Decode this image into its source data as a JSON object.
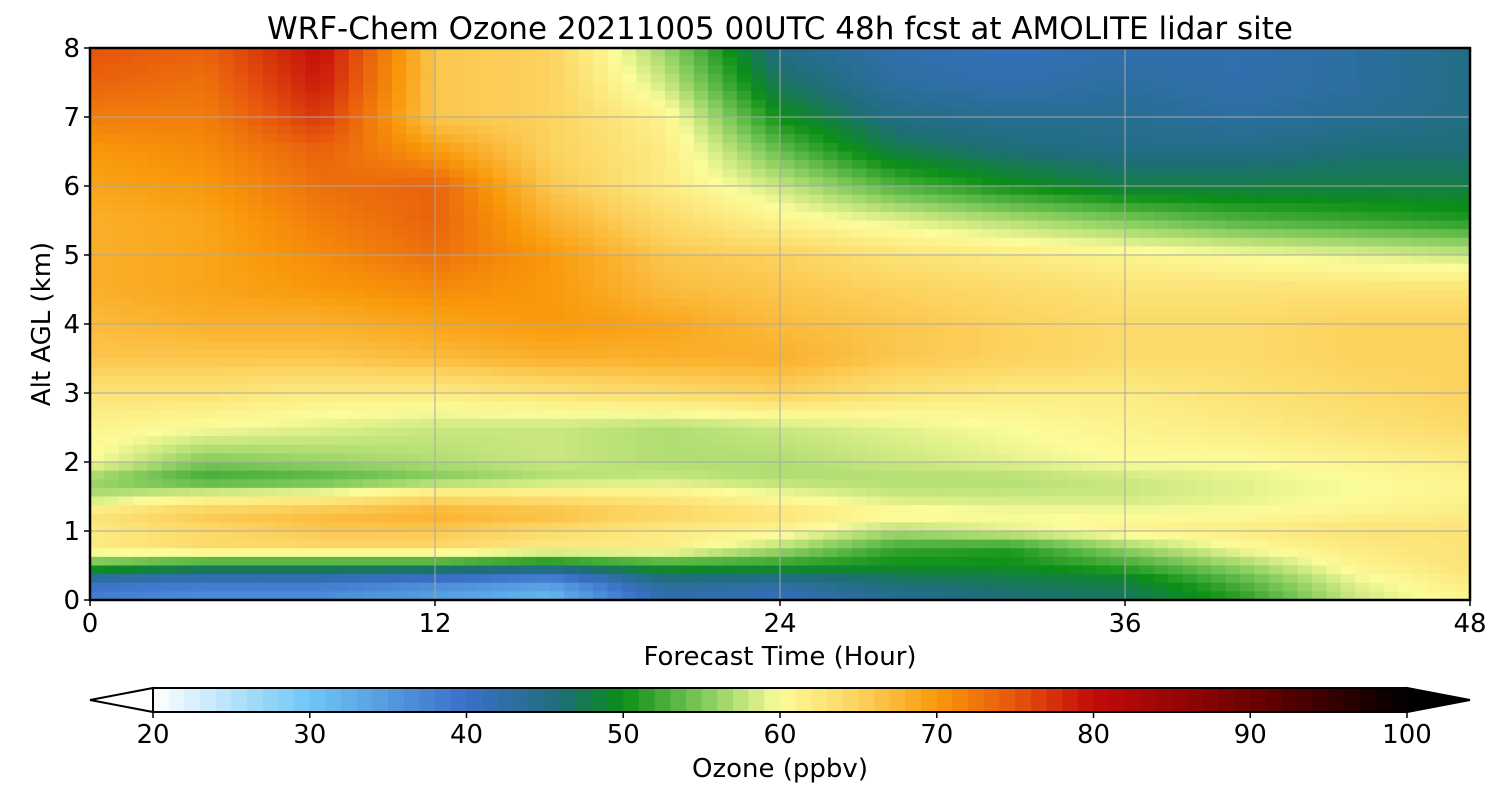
{
  "chart_data": {
    "type": "heatmap",
    "title": "WRF-Chem Ozone  20211005 00UTC 48h fcst at AMOLITE lidar site",
    "xlabel": "Forecast Time (Hour)",
    "ylabel": "Alt AGL (km)",
    "xlim": [
      0,
      48
    ],
    "ylim": [
      0,
      8
    ],
    "xticks": [
      "0",
      "12",
      "24",
      "36",
      "48"
    ],
    "yticks": [
      "0",
      "1",
      "2",
      "3",
      "4",
      "5",
      "6",
      "7",
      "8"
    ],
    "grid": true,
    "colorbar": {
      "label": "Ozone  (ppbv)",
      "range": [
        20,
        100
      ],
      "ticks": [
        "20",
        "30",
        "40",
        "50",
        "60",
        "70",
        "80",
        "90",
        "100"
      ],
      "extend": "both",
      "colors": [
        {
          "value": 20,
          "color": "#ffffff"
        },
        {
          "value": 30,
          "color": "#6ec6f5"
        },
        {
          "value": 40,
          "color": "#3a6fc8"
        },
        {
          "value": 46,
          "color": "#1e6e78"
        },
        {
          "value": 50,
          "color": "#0b8f16"
        },
        {
          "value": 55,
          "color": "#7ec95a"
        },
        {
          "value": 60,
          "color": "#fcfc9a"
        },
        {
          "value": 65,
          "color": "#fcd25e"
        },
        {
          "value": 70,
          "color": "#f9990a"
        },
        {
          "value": 75,
          "color": "#e6550d"
        },
        {
          "value": 80,
          "color": "#c40a0a"
        },
        {
          "value": 90,
          "color": "#6e0000"
        },
        {
          "value": 100,
          "color": "#000000"
        }
      ]
    },
    "x": [
      0,
      4,
      8,
      12,
      16,
      20,
      24,
      28,
      32,
      36,
      40,
      44,
      48
    ],
    "y": [
      0,
      0.25,
      0.5,
      0.75,
      1,
      1.25,
      1.5,
      1.75,
      2,
      2.5,
      3,
      3.5,
      4,
      4.5,
      5,
      5.5,
      6,
      6.5,
      7,
      7.5,
      8
    ],
    "z": [
      [
        38,
        36,
        36,
        34,
        31,
        42,
        41,
        44,
        46,
        47,
        51,
        58,
        61
      ],
      [
        40,
        39,
        39,
        37,
        35,
        44,
        43,
        46,
        47,
        48,
        53,
        59,
        62
      ],
      [
        53,
        50,
        50,
        50,
        48,
        51,
        51,
        50,
        50,
        52,
        56,
        61,
        63
      ],
      [
        62,
        64,
        64,
        64,
        62,
        62,
        57,
        52,
        51,
        56,
        60,
        62,
        63
      ],
      [
        62,
        64,
        66,
        66,
        64,
        62,
        61,
        57,
        59,
        61,
        62,
        63,
        63
      ],
      [
        63,
        66,
        67,
        68,
        67,
        65,
        63,
        61,
        60,
        60,
        60,
        61,
        62
      ],
      [
        57,
        60,
        61,
        64,
        63,
        62,
        60,
        58,
        58,
        58,
        59,
        60,
        61
      ],
      [
        56,
        52,
        53,
        55,
        57,
        58,
        57,
        57,
        57,
        58,
        59,
        60,
        61
      ],
      [
        60,
        55,
        56,
        57,
        58,
        57,
        57,
        58,
        59,
        60,
        60,
        61,
        62
      ],
      [
        61,
        60,
        59,
        58,
        58,
        57,
        58,
        59,
        60,
        61,
        62,
        63,
        64
      ],
      [
        63,
        63,
        62,
        62,
        63,
        64,
        65,
        63,
        62,
        62,
        63,
        64,
        65
      ],
      [
        66,
        66,
        66,
        67,
        68,
        68,
        68,
        66,
        65,
        64,
        64,
        65,
        65
      ],
      [
        67,
        68,
        68,
        69,
        70,
        69,
        67,
        66,
        65,
        64,
        64,
        65,
        65
      ],
      [
        68,
        69,
        70,
        71,
        70,
        67,
        66,
        65,
        64,
        63,
        63,
        63,
        63
      ],
      [
        68,
        69,
        71,
        73,
        70,
        66,
        65,
        63,
        62,
        61,
        60,
        59,
        58
      ],
      [
        68,
        69,
        72,
        74,
        68,
        64,
        61,
        59,
        57,
        55,
        53,
        52,
        51
      ],
      [
        69,
        70,
        73,
        74,
        66,
        62,
        58,
        53,
        50,
        48,
        48,
        48,
        48
      ],
      [
        70,
        71,
        74,
        70,
        65,
        62,
        54,
        48,
        46,
        45,
        45,
        46,
        46
      ],
      [
        72,
        72,
        77,
        66,
        65,
        61,
        50,
        45,
        44,
        44,
        43,
        44,
        45
      ],
      [
        74,
        73,
        79,
        66,
        65,
        58,
        47,
        43,
        42,
        43,
        42,
        43,
        45
      ],
      [
        75,
        74,
        80,
        66,
        65,
        56,
        45,
        42,
        41,
        42,
        42,
        43,
        45
      ]
    ]
  }
}
